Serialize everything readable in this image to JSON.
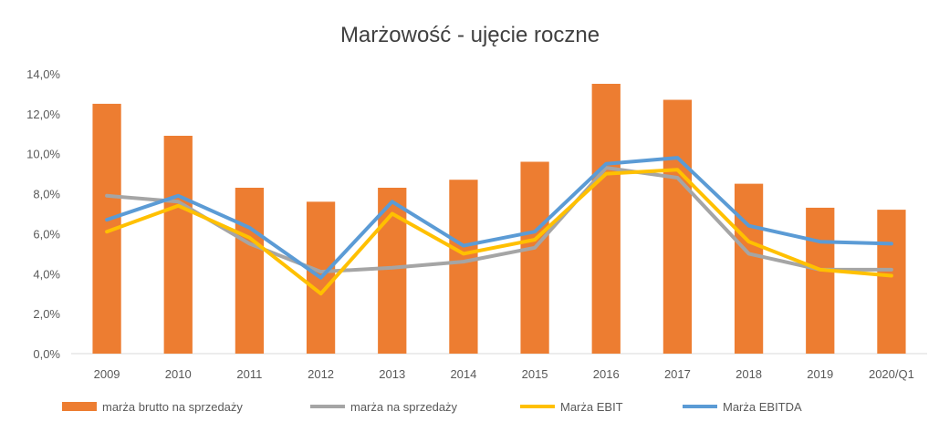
{
  "chart_data": {
    "type": "bar+line",
    "title": "Marżowość - ujęcie roczne",
    "categories": [
      "2009",
      "2010",
      "2011",
      "2012",
      "2013",
      "2014",
      "2015",
      "2016",
      "2017",
      "2018",
      "2019",
      "2020/Q1"
    ],
    "ylim": [
      0,
      14
    ],
    "yticks": [
      0,
      2,
      4,
      6,
      8,
      10,
      12,
      14
    ],
    "ytick_labels": [
      "0,0%",
      "2,0%",
      "4,0%",
      "6,0%",
      "8,0%",
      "10,0%",
      "12,0%",
      "14,0%"
    ],
    "grid": false,
    "legend_position": "bottom",
    "series": [
      {
        "name": "marża brutto na sprzedaży",
        "kind": "bar",
        "color": "#ED7D31",
        "values": [
          12.5,
          10.9,
          8.3,
          7.6,
          8.3,
          8.7,
          9.6,
          13.5,
          12.7,
          8.5,
          7.3,
          7.2
        ]
      },
      {
        "name": "marża na sprzedaży",
        "kind": "line",
        "color": "#A5A5A5",
        "values": [
          7.9,
          7.6,
          5.5,
          4.1,
          4.3,
          4.6,
          5.3,
          9.3,
          8.8,
          5.0,
          4.2,
          4.2
        ]
      },
      {
        "name": "Marża EBIT",
        "kind": "line",
        "color": "#FFC000",
        "values": [
          6.1,
          7.4,
          5.8,
          3.0,
          7.0,
          5.0,
          5.7,
          9.0,
          9.2,
          5.6,
          4.2,
          3.9
        ]
      },
      {
        "name": "Marża EBITDA",
        "kind": "line",
        "color": "#5B9BD5",
        "values": [
          6.7,
          7.9,
          6.3,
          3.8,
          7.6,
          5.4,
          6.1,
          9.5,
          9.8,
          6.4,
          5.6,
          5.5
        ]
      }
    ]
  }
}
